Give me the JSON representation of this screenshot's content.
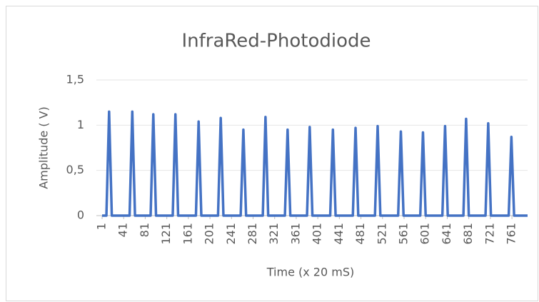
{
  "chart_data": {
    "type": "line",
    "title": "InfraRed-Photodiode",
    "x_label": "Time (x 20 mS)",
    "y_label": "Amplitude ( V)",
    "x": [
      1,
      9,
      14,
      19,
      52,
      57,
      62,
      91,
      96,
      101,
      132,
      137,
      142,
      175,
      180,
      185,
      216,
      221,
      226,
      258,
      263,
      268,
      299,
      304,
      309,
      340,
      345,
      350,
      381,
      386,
      391,
      424,
      429,
      434,
      466,
      471,
      476,
      507,
      512,
      517,
      550,
      555,
      560,
      591,
      596,
      601,
      632,
      637,
      642,
      671,
      676,
      681,
      712,
      717,
      722,
      755,
      760,
      765,
      790
    ],
    "series": [
      {
        "name": "Amplitude",
        "color": "#4472c4",
        "values": [
          0,
          0,
          1.15,
          0,
          0,
          1.15,
          0,
          0,
          1.12,
          0,
          0,
          1.12,
          0,
          0,
          1.04,
          0,
          0,
          1.08,
          0,
          0,
          0.95,
          0,
          0,
          1.09,
          0,
          0,
          0.95,
          0,
          0,
          0.98,
          0,
          0,
          0.95,
          0,
          0,
          0.97,
          0,
          0,
          0.99,
          0,
          0,
          0.93,
          0,
          0,
          0.92,
          0,
          0,
          0.99,
          0,
          0,
          1.07,
          0,
          0,
          1.02,
          0,
          0,
          0.87,
          0,
          0
        ]
      }
    ],
    "xlim": [
      1,
      790
    ],
    "xticks": [
      1,
      41,
      81,
      121,
      161,
      201,
      241,
      281,
      321,
      361,
      401,
      441,
      481,
      521,
      561,
      601,
      641,
      681,
      721,
      761
    ],
    "ylim": [
      0,
      1.5
    ],
    "yticks": [
      0,
      {
        "value": 0.5,
        "label": "0,5"
      },
      1,
      {
        "value": 1.5,
        "label": "1,5"
      }
    ],
    "grid": true
  }
}
